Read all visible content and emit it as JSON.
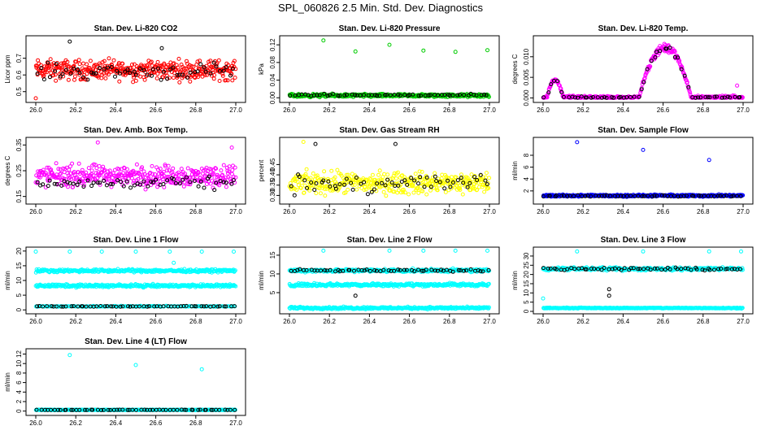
{
  "page": {
    "title": "SPL_060826  2.5 Min. Std. Dev. Diagnostics"
  },
  "colors": {
    "red": "#ff0000",
    "green": "#00cc00",
    "magenta": "#ff00ff",
    "yellow": "#ffff00",
    "blue": "#0000ff",
    "cyan": "#00ffff",
    "black": "#000000"
  },
  "chart_data": [
    {
      "type": "scatter",
      "title": "Stan. Dev. Li-820 CO2",
      "ylabel": "Licor ppm",
      "xlim": [
        26.0,
        27.0
      ],
      "ylim": [
        0.45,
        0.82
      ],
      "xticks": [
        26.0,
        26.2,
        26.4,
        26.6,
        26.8,
        27.0
      ],
      "xtick_labels": [
        "26.0",
        "26.2",
        "26.4",
        "26.6",
        "26.8",
        "27.0"
      ],
      "yticks": [
        0.5,
        0.6,
        0.7
      ],
      "ytick_labels": [
        "0.5",
        "0.6",
        "0.7"
      ],
      "series": [
        {
          "name": "primary",
          "color": "red",
          "n": 400,
          "model": "noise",
          "base": 0.63,
          "spread": 0.05
        },
        {
          "name": "overlay",
          "color": "black",
          "n": 60,
          "model": "noise",
          "base": 0.62,
          "spread": 0.04
        }
      ],
      "outliers": [
        {
          "x": 26.17,
          "y": 0.8,
          "color": "black"
        },
        {
          "x": 26.63,
          "y": 0.76,
          "color": "black"
        },
        {
          "x": 26.0,
          "y": 0.46,
          "color": "red"
        }
      ]
    },
    {
      "type": "scatter",
      "title": "Stan. Dev. Li-820 Pressure",
      "ylabel": "kPa",
      "xlim": [
        26.0,
        27.0
      ],
      "ylim": [
        -0.005,
        0.135
      ],
      "xticks": [
        26.0,
        26.2,
        26.4,
        26.6,
        26.8,
        27.0
      ],
      "xtick_labels": [
        "26.0",
        "26.2",
        "26.4",
        "26.6",
        "26.8",
        "27.0"
      ],
      "yticks": [
        0.0,
        0.04,
        0.08,
        0.12
      ],
      "ytick_labels": [
        "0.00",
        "0.04",
        "0.08",
        "0.12"
      ],
      "series": [
        {
          "name": "primary",
          "color": "green",
          "n": 400,
          "model": "noise",
          "base": 0.005,
          "spread": 0.003
        },
        {
          "name": "overlay",
          "color": "black",
          "n": 60,
          "model": "noise",
          "base": 0.006,
          "spread": 0.002
        }
      ],
      "outliers": [
        {
          "x": 26.17,
          "y": 0.13,
          "color": "green"
        },
        {
          "x": 26.33,
          "y": 0.105,
          "color": "green"
        },
        {
          "x": 26.5,
          "y": 0.12,
          "color": "green"
        },
        {
          "x": 26.67,
          "y": 0.107,
          "color": "green"
        },
        {
          "x": 26.83,
          "y": 0.104,
          "color": "green"
        },
        {
          "x": 26.99,
          "y": 0.108,
          "color": "green"
        }
      ]
    },
    {
      "type": "scatter",
      "title": "Stan. Dev. Li-820 Temp.",
      "ylabel": "degrees C",
      "xlim": [
        26.0,
        27.0
      ],
      "ylim": [
        -0.0005,
        0.0145
      ],
      "xticks": [
        26.0,
        26.2,
        26.4,
        26.6,
        26.8,
        27.0
      ],
      "xtick_labels": [
        "26.0",
        "26.2",
        "26.4",
        "26.6",
        "26.8",
        "27.0"
      ],
      "yticks": [
        0.0,
        0.005,
        0.01
      ],
      "ytick_labels": [
        "0.000",
        "0.005",
        "0.010"
      ],
      "series": [
        {
          "name": "primary",
          "color": "magenta",
          "n": 400,
          "model": "bumps",
          "base": 0.0,
          "spread": 0.0004
        },
        {
          "name": "overlay",
          "color": "black",
          "n": 60,
          "model": "bumps",
          "base": 0.0,
          "spread": 0.0003
        }
      ],
      "bumps": [
        {
          "center": 26.06,
          "width": 0.04,
          "height": 0.0045
        },
        {
          "center": 26.61,
          "width": 0.13,
          "height": 0.013
        }
      ],
      "outliers": [
        {
          "x": 26.97,
          "y": 0.003,
          "color": "magenta"
        }
      ]
    },
    {
      "type": "scatter",
      "title": "Stan. Dev. Amb. Box Temp.",
      "ylabel": "degrees C",
      "xlim": [
        26.0,
        27.0
      ],
      "ylim": [
        0.13,
        0.37
      ],
      "xticks": [
        26.0,
        26.2,
        26.4,
        26.6,
        26.8,
        27.0
      ],
      "xtick_labels": [
        "26.0",
        "26.2",
        "26.4",
        "26.6",
        "26.8",
        "27.0"
      ],
      "yticks": [
        0.15,
        0.25,
        0.35
      ],
      "ytick_labels": [
        "0.15",
        "0.25",
        "0.35"
      ],
      "series": [
        {
          "name": "primary",
          "color": "magenta",
          "n": 400,
          "model": "noise",
          "base": 0.23,
          "spread": 0.035
        },
        {
          "name": "overlay",
          "color": "black",
          "n": 60,
          "model": "noise",
          "base": 0.2,
          "spread": 0.02
        }
      ],
      "outliers": [
        {
          "x": 26.31,
          "y": 0.36,
          "color": "magenta"
        },
        {
          "x": 26.98,
          "y": 0.34,
          "color": "magenta"
        }
      ]
    },
    {
      "type": "scatter",
      "title": "Stan. Dev. Gas Stream RH",
      "ylabel": "percent",
      "xlim": [
        26.0,
        27.0
      ],
      "ylim": [
        0.27,
        0.57
      ],
      "xticks": [
        26.0,
        26.2,
        26.4,
        26.6,
        26.8,
        27.0
      ],
      "xtick_labels": [
        "26.0",
        "26.2",
        "26.4",
        "26.6",
        "26.8",
        "27.0"
      ],
      "yticks": [
        0.3,
        0.35,
        0.4,
        0.45
      ],
      "ytick_labels": [
        "0.30",
        "0.35",
        "0.40",
        "0.45"
      ],
      "series": [
        {
          "name": "primary",
          "color": "yellow",
          "n": 400,
          "model": "noise",
          "base": 0.36,
          "spread": 0.045
        },
        {
          "name": "overlay",
          "color": "black",
          "n": 60,
          "model": "noise",
          "base": 0.36,
          "spread": 0.04
        }
      ],
      "outliers": [
        {
          "x": 26.13,
          "y": 0.55,
          "color": "black"
        },
        {
          "x": 26.53,
          "y": 0.55,
          "color": "black"
        },
        {
          "x": 26.07,
          "y": 0.56,
          "color": "yellow"
        }
      ]
    },
    {
      "type": "scatter",
      "title": "Stan. Dev. Sample Flow",
      "ylabel": "ml/min",
      "xlim": [
        26.0,
        27.0
      ],
      "ylim": [
        0.2,
        10.6
      ],
      "xticks": [
        26.0,
        26.2,
        26.4,
        26.6,
        26.8,
        27.0
      ],
      "xtick_labels": [
        "26.0",
        "26.2",
        "26.4",
        "26.6",
        "26.8",
        "27.0"
      ],
      "yticks": [
        2,
        4,
        6,
        8
      ],
      "ytick_labels": [
        "2",
        "4",
        "6",
        "8"
      ],
      "series": [
        {
          "name": "primary",
          "color": "blue",
          "n": 400,
          "model": "noise",
          "base": 1.2,
          "spread": 0.15
        },
        {
          "name": "overlay",
          "color": "black",
          "n": 60,
          "model": "noise",
          "base": 1.15,
          "spread": 0.1
        }
      ],
      "outliers": [
        {
          "x": 26.17,
          "y": 10.2,
          "color": "blue"
        },
        {
          "x": 26.5,
          "y": 8.9,
          "color": "blue"
        },
        {
          "x": 26.83,
          "y": 7.2,
          "color": "blue"
        }
      ]
    },
    {
      "type": "scatter",
      "title": "Stan. Dev. Line 1 Flow",
      "ylabel": "ml/min",
      "xlim": [
        26.0,
        27.0
      ],
      "ylim": [
        -0.5,
        20.5
      ],
      "xticks": [
        26.0,
        26.2,
        26.4,
        26.6,
        26.8,
        27.0
      ],
      "xtick_labels": [
        "26.0",
        "26.2",
        "26.4",
        "26.6",
        "26.8",
        "27.0"
      ],
      "yticks": [
        0,
        5,
        10,
        15,
        20
      ],
      "ytick_labels": [
        "0",
        "5",
        "10",
        "15",
        "20"
      ],
      "series": [
        {
          "name": "band-high",
          "color": "cyan",
          "n": 300,
          "model": "noise",
          "base": 13.3,
          "spread": 0.4
        },
        {
          "name": "band-mid",
          "color": "cyan",
          "n": 300,
          "model": "noise",
          "base": 8.2,
          "spread": 0.4
        },
        {
          "name": "band-low",
          "color": "cyan",
          "n": 150,
          "model": "noise",
          "base": 1.2,
          "spread": 0.1
        },
        {
          "name": "overlay",
          "color": "black",
          "n": 60,
          "model": "noise",
          "base": 1.2,
          "spread": 0.1
        }
      ],
      "outliers": [
        {
          "x": 26.0,
          "y": 19.8,
          "color": "cyan"
        },
        {
          "x": 26.17,
          "y": 19.8,
          "color": "cyan"
        },
        {
          "x": 26.33,
          "y": 19.8,
          "color": "cyan"
        },
        {
          "x": 26.5,
          "y": 19.8,
          "color": "cyan"
        },
        {
          "x": 26.67,
          "y": 19.8,
          "color": "cyan"
        },
        {
          "x": 26.83,
          "y": 19.8,
          "color": "cyan"
        },
        {
          "x": 26.99,
          "y": 19.8,
          "color": "cyan"
        },
        {
          "x": 26.69,
          "y": 16.0,
          "color": "cyan"
        }
      ]
    },
    {
      "type": "scatter",
      "title": "Stan. Dev. Line 2 Flow",
      "ylabel": "ml/min",
      "xlim": [
        26.0,
        27.0
      ],
      "ylim": [
        0.0,
        16.5
      ],
      "xticks": [
        26.0,
        26.2,
        26.4,
        26.6,
        26.8,
        27.0
      ],
      "xtick_labels": [
        "26.0",
        "26.2",
        "26.4",
        "26.6",
        "26.8",
        "27.0"
      ],
      "yticks": [
        5,
        10,
        15
      ],
      "ytick_labels": [
        "5",
        "10",
        "15"
      ],
      "series": [
        {
          "name": "band-high",
          "color": "cyan",
          "n": 300,
          "model": "noise",
          "base": 10.9,
          "spread": 0.35
        },
        {
          "name": "band-mid",
          "color": "cyan",
          "n": 300,
          "model": "noise",
          "base": 7.1,
          "spread": 0.35
        },
        {
          "name": "band-low",
          "color": "cyan",
          "n": 300,
          "model": "noise",
          "base": 0.9,
          "spread": 0.25
        },
        {
          "name": "overlay",
          "color": "black",
          "n": 60,
          "model": "noise",
          "base": 10.9,
          "spread": 0.25
        }
      ],
      "outliers": [
        {
          "x": 26.33,
          "y": 4.2,
          "color": "black"
        },
        {
          "x": 26.17,
          "y": 16.2,
          "color": "cyan"
        },
        {
          "x": 26.5,
          "y": 16.2,
          "color": "cyan"
        },
        {
          "x": 26.67,
          "y": 16.2,
          "color": "cyan"
        },
        {
          "x": 26.83,
          "y": 16.2,
          "color": "cyan"
        },
        {
          "x": 26.99,
          "y": 16.2,
          "color": "cyan"
        }
      ]
    },
    {
      "type": "scatter",
      "title": "Stan. Dev. Line 3 Flow",
      "ylabel": "ml/min",
      "xlim": [
        26.0,
        27.0
      ],
      "ylim": [
        0.0,
        33.5
      ],
      "xticks": [
        26.0,
        26.2,
        26.4,
        26.6,
        26.8,
        27.0
      ],
      "xtick_labels": [
        "26.0",
        "26.2",
        "26.4",
        "26.6",
        "26.8",
        "27.0"
      ],
      "yticks": [
        0,
        5,
        10,
        15,
        20,
        25,
        30
      ],
      "ytick_labels": [
        "0",
        "5",
        "10",
        "15",
        "20",
        "25",
        "30"
      ],
      "series": [
        {
          "name": "band-high",
          "color": "cyan",
          "n": 300,
          "model": "noise",
          "base": 23.0,
          "spread": 0.7
        },
        {
          "name": "band-low",
          "color": "cyan",
          "n": 300,
          "model": "noise",
          "base": 1.8,
          "spread": 0.2
        },
        {
          "name": "overlay",
          "color": "black",
          "n": 60,
          "model": "noise",
          "base": 23.0,
          "spread": 0.6
        }
      ],
      "outliers": [
        {
          "x": 26.33,
          "y": 12.0,
          "color": "black"
        },
        {
          "x": 26.33,
          "y": 8.5,
          "color": "black"
        },
        {
          "x": 26.0,
          "y": 7.0,
          "color": "cyan"
        },
        {
          "x": 26.17,
          "y": 32.5,
          "color": "cyan"
        },
        {
          "x": 26.5,
          "y": 32.5,
          "color": "cyan"
        },
        {
          "x": 26.83,
          "y": 32.5,
          "color": "cyan"
        },
        {
          "x": 26.99,
          "y": 32.5,
          "color": "cyan"
        }
      ]
    },
    {
      "type": "scatter",
      "title": "Stan. Dev. Line 4 (LT) Flow",
      "ylabel": "ml/min",
      "xlim": [
        26.0,
        27.0
      ],
      "ylim": [
        -0.4,
        12.6
      ],
      "xticks": [
        26.0,
        26.2,
        26.4,
        26.6,
        26.8,
        27.0
      ],
      "xtick_labels": [
        "26.0",
        "26.2",
        "26.4",
        "26.6",
        "26.8",
        "27.0"
      ],
      "yticks": [
        0,
        2,
        4,
        6,
        8,
        10,
        12
      ],
      "ytick_labels": [
        "0",
        "2",
        "4",
        "6",
        "8",
        "10",
        "12"
      ],
      "series": [
        {
          "name": "primary",
          "color": "cyan",
          "n": 400,
          "model": "noise",
          "base": 0.25,
          "spread": 0.05
        },
        {
          "name": "overlay",
          "color": "black",
          "n": 60,
          "model": "noise",
          "base": 0.25,
          "spread": 0.04
        }
      ],
      "outliers": [
        {
          "x": 26.17,
          "y": 11.8,
          "color": "cyan"
        },
        {
          "x": 26.5,
          "y": 9.7,
          "color": "cyan"
        },
        {
          "x": 26.83,
          "y": 8.8,
          "color": "cyan"
        }
      ]
    }
  ]
}
